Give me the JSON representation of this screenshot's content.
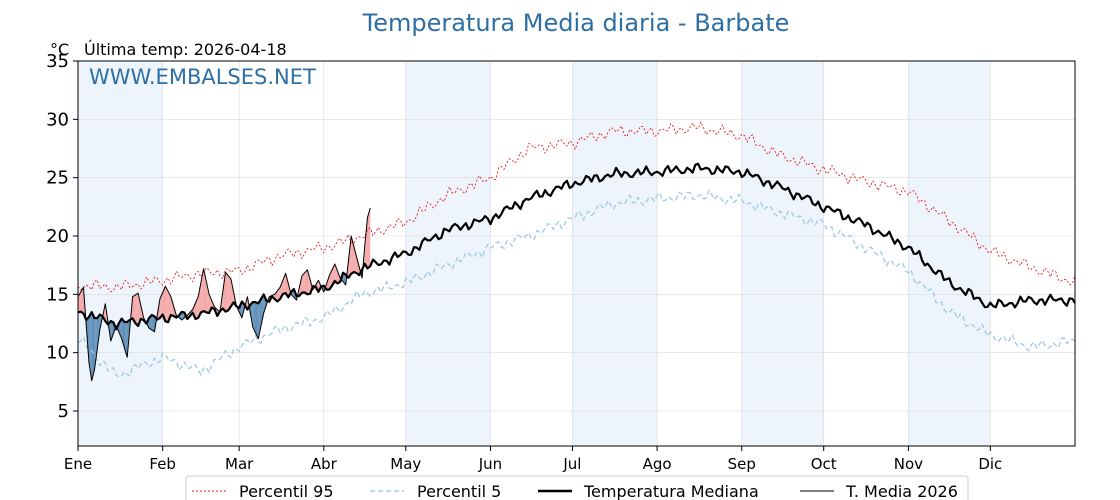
{
  "chart_data": {
    "type": "line",
    "title": "Temperatura Media diaria - Barbate",
    "unit_label": "°C",
    "last_temp_label": "Última temp: 2026-04-18",
    "watermark": "WWW.EMBALSES.NET",
    "x_domain": [
      1,
      366
    ],
    "ylim": [
      2,
      35
    ],
    "yticks": [
      5,
      10,
      15,
      20,
      25,
      30,
      35
    ],
    "months": [
      {
        "label": "Ene",
        "start_day": 1,
        "end_day": 32,
        "shaded": true
      },
      {
        "label": "Feb",
        "start_day": 32,
        "end_day": 60,
        "shaded": false
      },
      {
        "label": "Mar",
        "start_day": 60,
        "end_day": 91,
        "shaded": false
      },
      {
        "label": "Abr",
        "start_day": 91,
        "end_day": 121,
        "shaded": false
      },
      {
        "label": "May",
        "start_day": 121,
        "end_day": 152,
        "shaded": true
      },
      {
        "label": "Jun",
        "start_day": 152,
        "end_day": 182,
        "shaded": false
      },
      {
        "label": "Jul",
        "start_day": 182,
        "end_day": 213,
        "shaded": true
      },
      {
        "label": "Ago",
        "start_day": 213,
        "end_day": 244,
        "shaded": false
      },
      {
        "label": "Sep",
        "start_day": 244,
        "end_day": 274,
        "shaded": true
      },
      {
        "label": "Oct",
        "start_day": 274,
        "end_day": 305,
        "shaded": false
      },
      {
        "label": "Nov",
        "start_day": 305,
        "end_day": 335,
        "shaded": true
      },
      {
        "label": "Dic",
        "start_day": 335,
        "end_day": 366,
        "shaded": false
      }
    ],
    "grid": true,
    "legend": {
      "position": "bottom-center",
      "entries": [
        "Percentil 95",
        "Percentil 5",
        "Temperatura Mediana",
        "T. Media 2026"
      ]
    },
    "colors": {
      "p95": "#e31a1c",
      "p5": "#9ecae1",
      "median": "#000000",
      "current": "#000000",
      "above_fill": "#f4a6a6",
      "below_fill": "#5b8db8",
      "title": "#2e6fa3",
      "month_shade": "#eef4fb"
    },
    "series": [
      {
        "name": "Percentil 95",
        "key": "p95",
        "style": "dotted",
        "days": [
          1,
          15,
          32,
          46,
          60,
          75,
          91,
          105,
          121,
          136,
          152,
          166,
          182,
          197,
          213,
          228,
          244,
          258,
          274,
          289,
          305,
          320,
          335,
          350,
          366
        ],
        "values": [
          15.8,
          15.6,
          16.2,
          16.8,
          17.0,
          18.3,
          19.0,
          20.0,
          21.2,
          23.5,
          25.0,
          27.5,
          28.0,
          29.0,
          29.0,
          29.3,
          28.6,
          26.9,
          25.7,
          24.7,
          23.8,
          21.3,
          18.7,
          17.3,
          16.0
        ]
      },
      {
        "name": "Percentil 5",
        "key": "p5",
        "style": "dashed",
        "days": [
          1,
          15,
          32,
          46,
          60,
          75,
          91,
          105,
          121,
          136,
          152,
          166,
          182,
          197,
          213,
          228,
          244,
          258,
          274,
          289,
          305,
          320,
          335,
          350,
          366
        ],
        "values": [
          11.2,
          8.0,
          9.6,
          8.4,
          10.5,
          12.0,
          13.0,
          15.0,
          16.0,
          17.5,
          19.0,
          20.0,
          21.5,
          22.8,
          23.2,
          23.5,
          23.0,
          22.0,
          21.0,
          19.0,
          17.0,
          13.5,
          11.5,
          10.5,
          11.0
        ]
      },
      {
        "name": "Temperatura Mediana",
        "key": "median",
        "style": "solid-bold",
        "days": [
          1,
          15,
          32,
          46,
          60,
          75,
          91,
          105,
          121,
          136,
          152,
          166,
          182,
          197,
          213,
          228,
          244,
          258,
          274,
          289,
          305,
          320,
          335,
          350,
          366
        ],
        "values": [
          13.5,
          12.5,
          13.0,
          13.3,
          14.0,
          14.8,
          15.5,
          17.2,
          18.5,
          20.5,
          21.5,
          23.2,
          24.5,
          25.3,
          25.5,
          25.8,
          25.5,
          24.2,
          22.5,
          21.0,
          19.0,
          16.0,
          14.0,
          14.5,
          14.5
        ]
      },
      {
        "name": "T. Media 2026",
        "key": "current",
        "style": "solid-thin",
        "days": [
          1,
          3,
          5,
          6,
          7,
          9,
          11,
          13,
          15,
          17,
          19,
          21,
          23,
          25,
          27,
          29,
          31,
          33,
          35,
          37,
          39,
          41,
          43,
          45,
          47,
          49,
          51,
          53,
          55,
          57,
          59,
          61,
          63,
          65,
          67,
          69,
          71,
          73,
          75,
          77,
          79,
          81,
          83,
          85,
          87,
          89,
          91,
          93,
          95,
          97,
          99,
          101,
          103,
          105,
          106,
          107,
          108
        ],
        "values": [
          14.8,
          15.6,
          9.2,
          7.6,
          8.5,
          12.0,
          14.2,
          11.0,
          12.3,
          11.2,
          9.6,
          14.8,
          15.1,
          13.0,
          12.1,
          11.8,
          14.6,
          15.7,
          14.8,
          13.2,
          12.8,
          13.2,
          13.7,
          14.8,
          17.2,
          15.0,
          13.9,
          13.5,
          16.9,
          16.3,
          14.0,
          13.0,
          14.8,
          12.2,
          11.2,
          13.4,
          14.8,
          15.0,
          15.6,
          16.8,
          15.0,
          14.5,
          16.6,
          17.1,
          15.4,
          16.2,
          15.2,
          16.6,
          17.6,
          16.4,
          15.8,
          20.0,
          18.2,
          16.4,
          19.2,
          21.6,
          22.4
        ]
      }
    ]
  }
}
